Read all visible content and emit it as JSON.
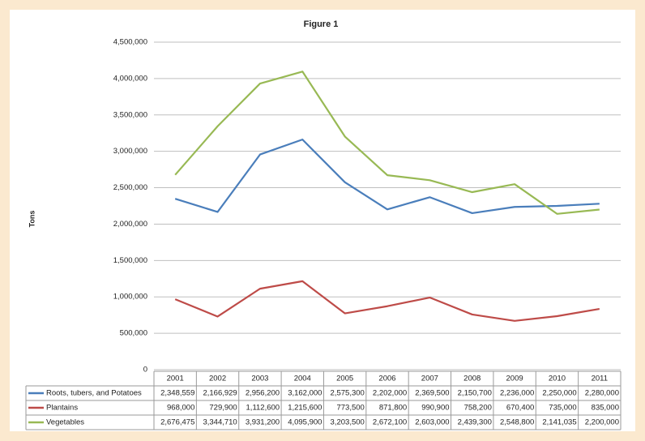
{
  "chart_data": {
    "type": "line",
    "title": "Figure 1",
    "y_label": "Tons",
    "categories": [
      "2001",
      "2002",
      "2003",
      "2004",
      "2005",
      "2006",
      "2007",
      "2008",
      "2009",
      "2010",
      "2011"
    ],
    "series": [
      {
        "name": "Roots, tubers, and Potatoes",
        "color": "#4a7ebb",
        "values": [
          2348559,
          2166929,
          2956200,
          3162000,
          2575300,
          2202000,
          2369500,
          2150700,
          2236000,
          2250000,
          2280000
        ],
        "value_labels": [
          "2,348,559",
          "2,166,929",
          "2,956,200",
          "3,162,000",
          "2,575,300",
          "2,202,000",
          "2,369,500",
          "2,150,700",
          "2,236,000",
          "2,250,000",
          "2,280,000"
        ]
      },
      {
        "name": "Plantains",
        "color": "#be4b48",
        "values": [
          968000,
          729900,
          1112600,
          1215600,
          773500,
          871800,
          990900,
          758200,
          670400,
          735000,
          835000
        ],
        "value_labels": [
          "968,000",
          "729,900",
          "1,112,600",
          "1,215,600",
          "773,500",
          "871,800",
          "990,900",
          "758,200",
          "670,400",
          "735,000",
          "835,000"
        ]
      },
      {
        "name": "Vegetables",
        "color": "#98b954",
        "values": [
          2676475,
          3344710,
          3931200,
          4095900,
          3203500,
          2672100,
          2603000,
          2439300,
          2548800,
          2141035,
          2200000
        ],
        "value_labels": [
          "2,676,475",
          "3,344,710",
          "3,931,200",
          "4,095,900",
          "3,203,500",
          "2,672,100",
          "2,603,000",
          "2,439,300",
          "2,548,800",
          "2,141,035",
          "2,200,000"
        ]
      }
    ],
    "ylim": [
      0,
      4500000
    ],
    "yticks": [
      0,
      {
        "value": 500000,
        "label": "500,000"
      },
      {
        "value": 1000000,
        "label": "1,000,000"
      },
      {
        "value": 1500000,
        "label": "1,500,000"
      },
      {
        "value": 2000000,
        "label": "2,000,000"
      },
      {
        "value": 2500000,
        "label": "2,500,000"
      },
      {
        "value": 3000000,
        "label": "3,000,000"
      },
      {
        "value": 3500000,
        "label": "3,500,000"
      },
      {
        "value": 4000000,
        "label": "4,000,000"
      },
      {
        "value": 4500000,
        "label": "4,500,000"
      }
    ],
    "grid": true
  }
}
